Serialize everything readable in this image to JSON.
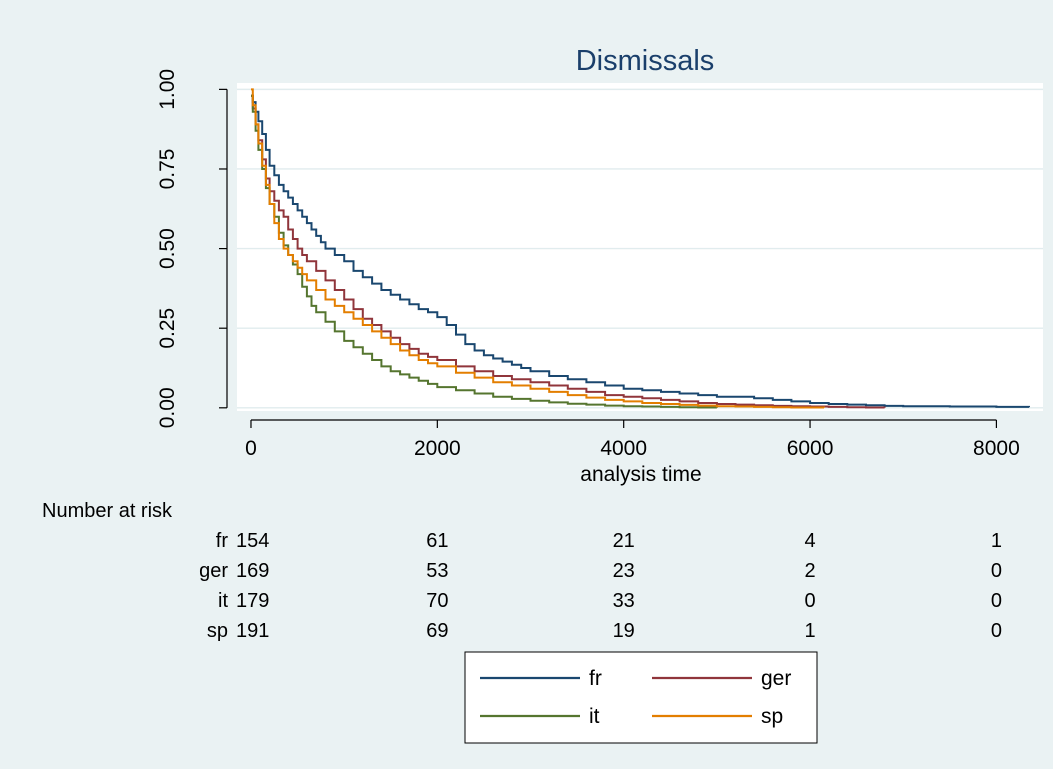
{
  "chart_data": {
    "type": "line",
    "title": "Dismissals",
    "xlabel": "analysis time",
    "ylabel": "",
    "xlim": [
      -150,
      8500
    ],
    "ylim": [
      -0.01,
      1.02
    ],
    "xticks": [
      0,
      2000,
      4000,
      6000,
      8000
    ],
    "xtick_labels": [
      "0",
      "2000",
      "4000",
      "6000",
      "8000"
    ],
    "yticks": [
      0,
      0.25,
      0.5,
      0.75,
      1
    ],
    "ytick_labels": [
      "0.00",
      "0.25",
      "0.50",
      "0.75",
      "1.00"
    ],
    "grid": true,
    "legend": "bottom-center",
    "series": [
      {
        "name": "fr",
        "color": "#1a476f",
        "x": [
          0,
          20,
          50,
          80,
          120,
          160,
          200,
          250,
          300,
          350,
          400,
          450,
          500,
          550,
          600,
          650,
          700,
          750,
          800,
          900,
          1000,
          1100,
          1200,
          1300,
          1400,
          1500,
          1600,
          1700,
          1800,
          1900,
          2000,
          2100,
          2200,
          2300,
          2400,
          2500,
          2600,
          2700,
          2800,
          2900,
          3000,
          3200,
          3400,
          3600,
          3800,
          4000,
          4200,
          4400,
          4600,
          4800,
          5000,
          5200,
          5400,
          5600,
          5800,
          6000,
          6200,
          6400,
          6600,
          6800,
          7000,
          7500,
          8000,
          8350
        ],
        "y": [
          0.98,
          0.96,
          0.93,
          0.9,
          0.86,
          0.81,
          0.76,
          0.73,
          0.7,
          0.68,
          0.66,
          0.64,
          0.62,
          0.6,
          0.58,
          0.56,
          0.54,
          0.52,
          0.5,
          0.48,
          0.46,
          0.43,
          0.41,
          0.39,
          0.37,
          0.355,
          0.34,
          0.325,
          0.31,
          0.3,
          0.285,
          0.26,
          0.23,
          0.2,
          0.18,
          0.165,
          0.155,
          0.145,
          0.135,
          0.125,
          0.115,
          0.1,
          0.09,
          0.08,
          0.07,
          0.06,
          0.055,
          0.05,
          0.045,
          0.04,
          0.035,
          0.035,
          0.03,
          0.025,
          0.02,
          0.015,
          0.012,
          0.01,
          0.008,
          0.006,
          0.005,
          0.004,
          0.003,
          0.002
        ]
      },
      {
        "name": "ger",
        "color": "#90353b",
        "x": [
          0,
          20,
          50,
          80,
          120,
          160,
          200,
          250,
          300,
          350,
          400,
          450,
          500,
          550,
          600,
          700,
          800,
          900,
          1000,
          1100,
          1200,
          1300,
          1400,
          1500,
          1600,
          1700,
          1800,
          1900,
          2000,
          2200,
          2400,
          2600,
          2800,
          3000,
          3200,
          3400,
          3600,
          3800,
          4000,
          4200,
          4400,
          4600,
          4800,
          5000,
          5200,
          5400,
          5600,
          5800,
          6000,
          6200,
          6400,
          6600,
          6800
        ],
        "y": [
          0.98,
          0.94,
          0.89,
          0.84,
          0.78,
          0.72,
          0.68,
          0.65,
          0.62,
          0.6,
          0.56,
          0.53,
          0.5,
          0.48,
          0.46,
          0.43,
          0.4,
          0.37,
          0.34,
          0.31,
          0.28,
          0.26,
          0.24,
          0.22,
          0.2,
          0.185,
          0.17,
          0.16,
          0.15,
          0.13,
          0.115,
          0.1,
          0.09,
          0.08,
          0.07,
          0.06,
          0.05,
          0.04,
          0.035,
          0.03,
          0.025,
          0.02,
          0.015,
          0.012,
          0.01,
          0.008,
          0.006,
          0.005,
          0.004,
          0.003,
          0.002,
          0.001,
          0
        ]
      },
      {
        "name": "it",
        "color": "#55752f",
        "x": [
          0,
          20,
          50,
          80,
          120,
          160,
          200,
          250,
          300,
          350,
          400,
          450,
          500,
          550,
          600,
          650,
          700,
          800,
          900,
          1000,
          1100,
          1200,
          1300,
          1400,
          1500,
          1600,
          1700,
          1800,
          1900,
          2000,
          2200,
          2400,
          2600,
          2800,
          3000,
          3200,
          3400,
          3600,
          3800,
          4000,
          4200,
          4400,
          4600,
          4800,
          5000
        ],
        "y": [
          0.98,
          0.93,
          0.87,
          0.81,
          0.75,
          0.69,
          0.64,
          0.6,
          0.55,
          0.51,
          0.48,
          0.45,
          0.42,
          0.38,
          0.35,
          0.32,
          0.3,
          0.27,
          0.24,
          0.21,
          0.19,
          0.17,
          0.15,
          0.13,
          0.115,
          0.105,
          0.095,
          0.085,
          0.075,
          0.065,
          0.055,
          0.045,
          0.035,
          0.028,
          0.022,
          0.017,
          0.013,
          0.01,
          0.007,
          0.005,
          0.004,
          0.003,
          0.002,
          0.001,
          0
        ]
      },
      {
        "name": "sp",
        "color": "#e37e00",
        "x": [
          0,
          20,
          50,
          80,
          120,
          160,
          200,
          250,
          300,
          350,
          400,
          450,
          500,
          550,
          600,
          700,
          800,
          900,
          1000,
          1100,
          1200,
          1300,
          1400,
          1500,
          1600,
          1700,
          1800,
          1900,
          2000,
          2200,
          2400,
          2600,
          2800,
          3000,
          3200,
          3400,
          3600,
          3800,
          4000,
          4200,
          4400,
          4600,
          4800,
          5000,
          5200,
          5400,
          5600,
          5800,
          6000,
          6150
        ],
        "y": [
          1.0,
          0.95,
          0.89,
          0.83,
          0.76,
          0.7,
          0.64,
          0.58,
          0.53,
          0.5,
          0.48,
          0.46,
          0.44,
          0.42,
          0.4,
          0.37,
          0.34,
          0.32,
          0.3,
          0.28,
          0.26,
          0.24,
          0.22,
          0.2,
          0.18,
          0.165,
          0.15,
          0.14,
          0.13,
          0.11,
          0.095,
          0.08,
          0.07,
          0.06,
          0.05,
          0.04,
          0.032,
          0.025,
          0.02,
          0.015,
          0.012,
          0.009,
          0.007,
          0.005,
          0.004,
          0.003,
          0.002,
          0.001,
          0.001,
          0
        ]
      }
    ],
    "risk_table": {
      "heading": "Number at risk",
      "times": [
        0,
        2000,
        4000,
        6000,
        8000
      ],
      "rows": [
        {
          "label": "fr",
          "values": [
            "154",
            "61",
            "21",
            "4",
            "1"
          ]
        },
        {
          "label": "ger",
          "values": [
            "169",
            "53",
            "23",
            "2",
            "0"
          ]
        },
        {
          "label": "it",
          "values": [
            "179",
            "70",
            "33",
            "0",
            "0"
          ]
        },
        {
          "label": "sp",
          "values": [
            "191",
            "69",
            "19",
            "1",
            "0"
          ]
        }
      ]
    }
  }
}
